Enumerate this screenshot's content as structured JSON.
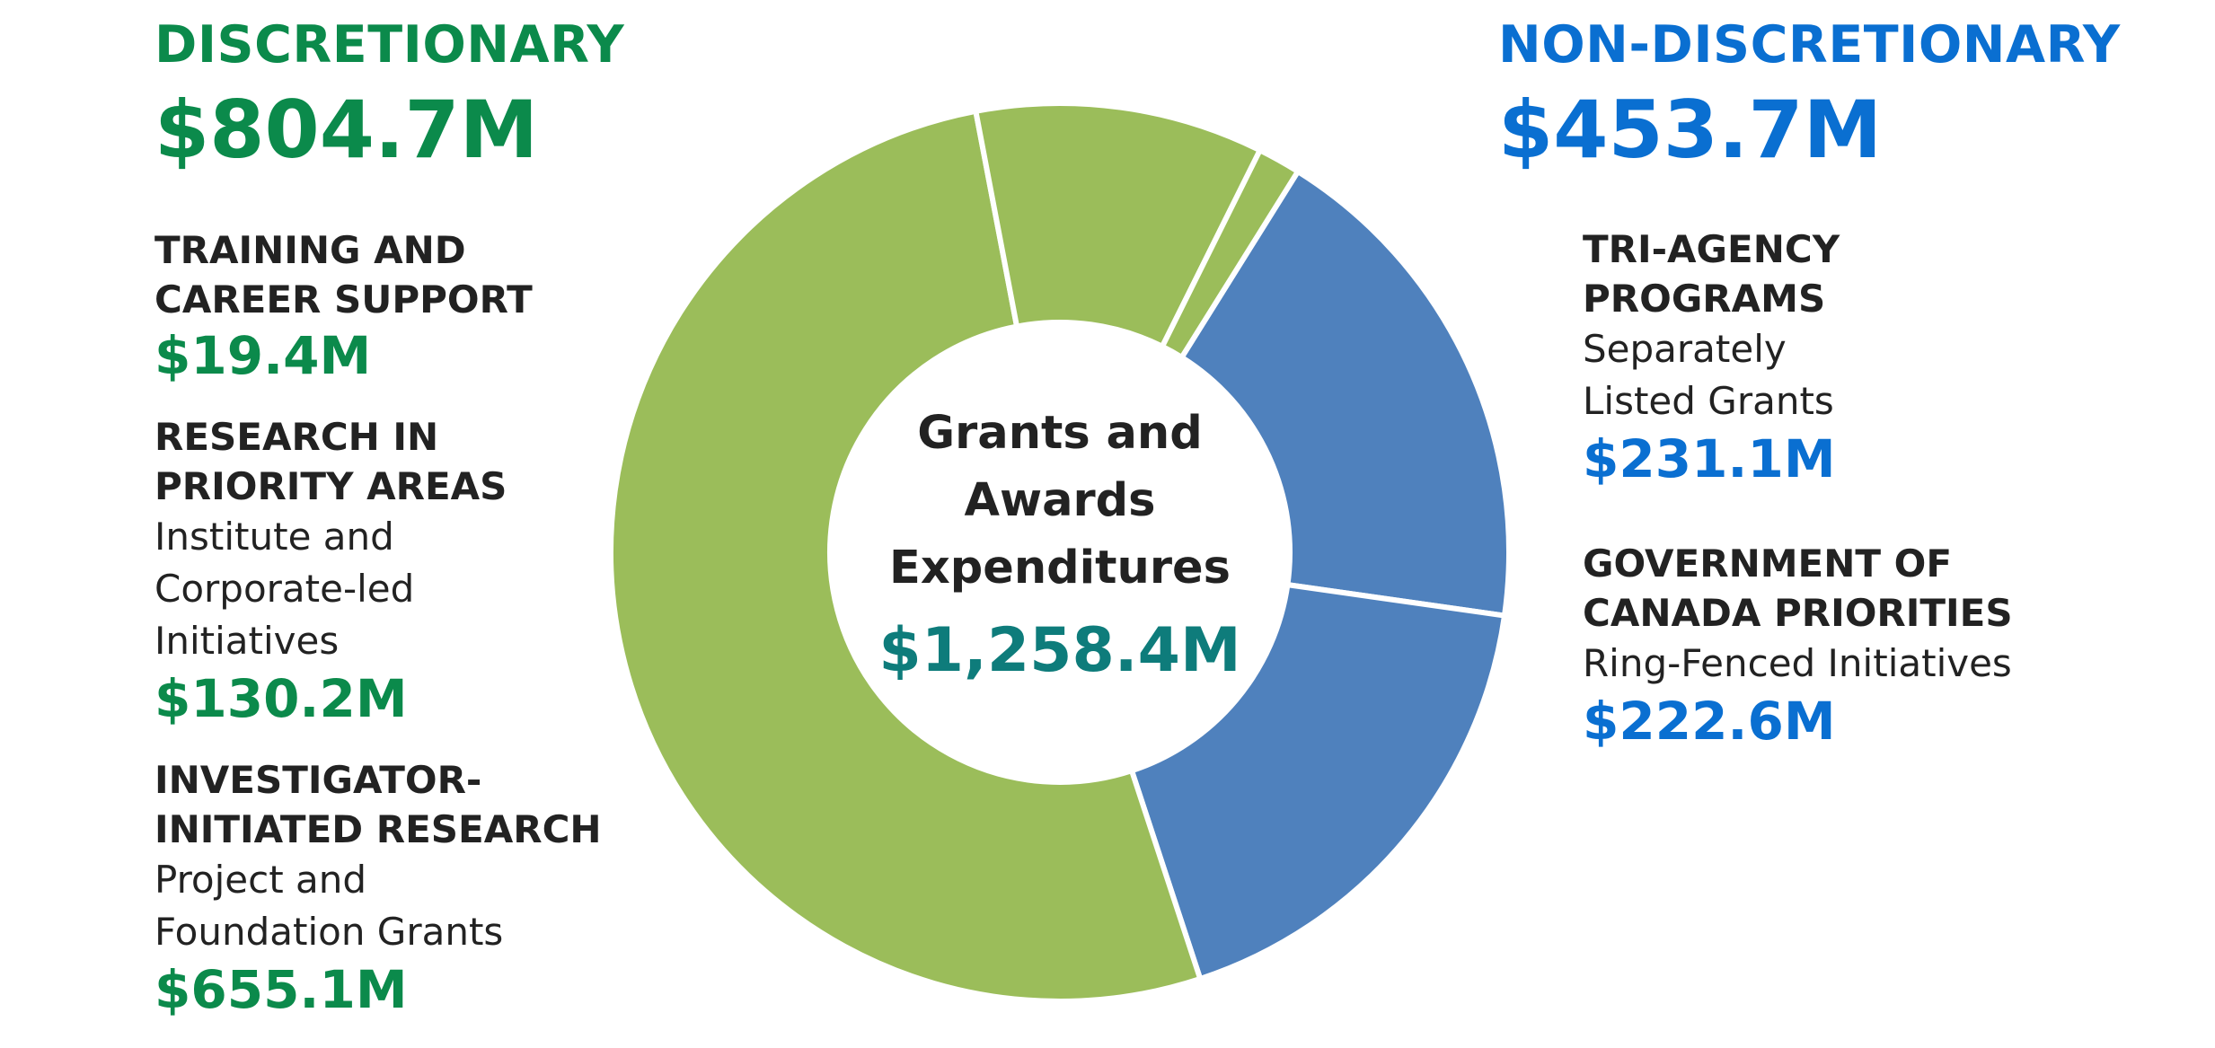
{
  "discretionary": {
    "heading": "DISCRETIONARY",
    "total": "$804.7M",
    "items": [
      {
        "title_lines": [
          "TRAINING AND",
          "CAREER SUPPORT"
        ],
        "desc_lines": [],
        "amount": "$19.4M"
      },
      {
        "title_lines": [
          "RESEARCH IN",
          "PRIORITY AREAS"
        ],
        "desc_lines": [
          "Institute and",
          "Corporate-led",
          "Initiatives"
        ],
        "amount": "$130.2M"
      },
      {
        "title_lines": [
          "INVESTIGATOR-",
          "INITIATED RESEARCH"
        ],
        "desc_lines": [
          "Project and",
          "Foundation Grants"
        ],
        "amount": "$655.1M"
      }
    ]
  },
  "non_discretionary": {
    "heading": "NON-DISCRETIONARY",
    "total": "$453.7M",
    "items": [
      {
        "title_lines": [
          "TRI-AGENCY",
          "PROGRAMS"
        ],
        "desc_lines": [
          "Separately",
          "Listed Grants"
        ],
        "amount": "$231.1M"
      },
      {
        "title_lines": [
          "GOVERNMENT OF",
          "CANADA PRIORITIES"
        ],
        "desc_lines": [
          "Ring-Fenced Initiatives"
        ],
        "amount": "$222.6M"
      }
    ]
  },
  "center": {
    "title_lines": [
      "Grants and",
      "Awards",
      "Expenditures"
    ],
    "total": "$1,258.4M"
  },
  "colors": {
    "discretionary_text": "#0b8a4b",
    "non_discretionary_text": "#0a6fd1",
    "center_total_text": "#0e7c7b",
    "slice_green": "#9bbd5a",
    "slice_blue": "#4f81bd",
    "separator": "#ffffff"
  },
  "chart_data": {
    "type": "pie",
    "title": "Grants and Awards Expenditures",
    "total": 1258.4,
    "unit": "$M",
    "start_category": "Tri-Agency Programs",
    "direction": "clockwise",
    "slices": [
      {
        "label": "Tri-Agency Programs",
        "group": "Non-Discretionary",
        "value": 231.1,
        "color": "#4f81bd"
      },
      {
        "label": "Government of Canada Priorities",
        "group": "Non-Discretionary",
        "value": 222.6,
        "color": "#4f81bd"
      },
      {
        "label": "Investigator-Initiated Research",
        "group": "Discretionary",
        "value": 655.1,
        "color": "#9bbd5a"
      },
      {
        "label": "Research in Priority Areas",
        "group": "Discretionary",
        "value": 130.2,
        "color": "#9bbd5a"
      },
      {
        "label": "Training and Career Support",
        "group": "Discretionary",
        "value": 19.4,
        "color": "#9bbd5a"
      }
    ]
  }
}
